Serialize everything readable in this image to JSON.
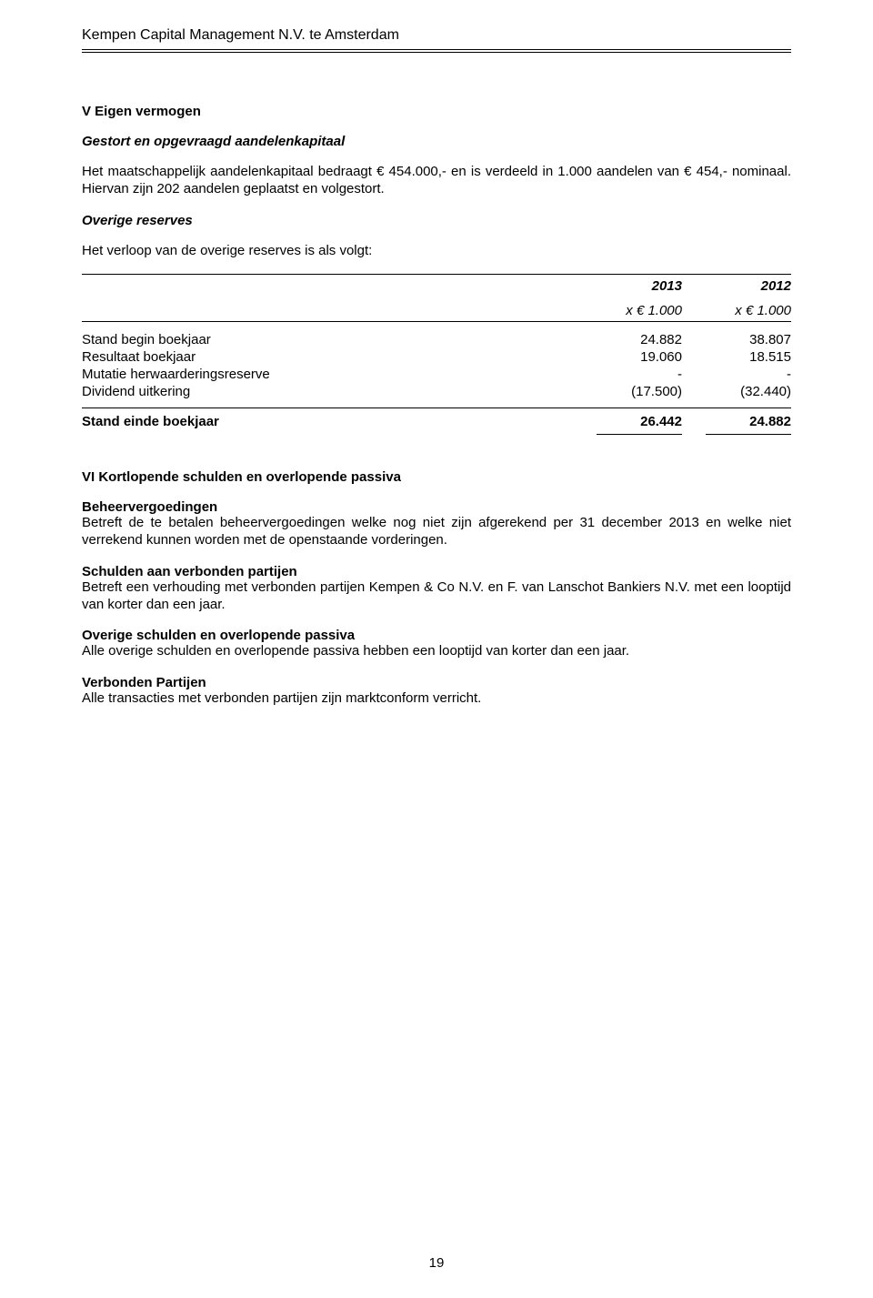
{
  "header": {
    "company": "Kempen Capital Management N.V. te Amsterdam"
  },
  "section5": {
    "title": "V Eigen vermogen",
    "gestort": {
      "heading": "Gestort en opgevraagd aandelenkapitaal",
      "text": "Het maatschappelijk aandelenkapitaal bedraagt € 454.000,- en is verdeeld in 1.000 aandelen van € 454,- nominaal. Hiervan zijn 202 aandelen geplaatst en volgestort."
    },
    "overige": {
      "heading": "Overige reserves",
      "intro": "Het verloop van de overige reserves is als volgt:"
    }
  },
  "table": {
    "year1": "2013",
    "year2": "2012",
    "unit1": "x € 1.000",
    "unit2": "x € 1.000",
    "rows": [
      {
        "label": "Stand begin boekjaar",
        "c1": "24.882",
        "c2": "38.807"
      },
      {
        "label": "Resultaat boekjaar",
        "c1": "19.060",
        "c2": "18.515"
      },
      {
        "label": "Mutatie herwaarderingsreserve",
        "c1": "-",
        "c2": "-"
      },
      {
        "label": "Dividend uitkering",
        "c1": "(17.500)",
        "c2": "(32.440)"
      }
    ],
    "total": {
      "label": "Stand einde boekjaar",
      "c1": "26.442",
      "c2": "24.882"
    }
  },
  "section6": {
    "title": "VI Kortlopende schulden en overlopende passiva",
    "beheer": {
      "heading": "Beheervergoedingen",
      "text": "Betreft de te betalen beheervergoedingen welke nog niet zijn afgerekend per 31 december 2013 en welke niet verrekend kunnen worden met de openstaande vorderingen."
    },
    "schulden": {
      "heading": "Schulden aan verbonden partijen",
      "text": "Betreft een verhouding met verbonden partijen Kempen & Co N.V. en F. van Lanschot Bankiers N.V. met een looptijd van korter dan een jaar."
    },
    "overige": {
      "heading": "Overige schulden en overlopende passiva",
      "text": "Alle overige schulden en overlopende passiva hebben een looptijd van korter dan een jaar."
    },
    "verbonden": {
      "heading": "Verbonden Partijen",
      "text": "Alle transacties met verbonden partijen zijn marktconform verricht."
    }
  },
  "pageNumber": "19"
}
